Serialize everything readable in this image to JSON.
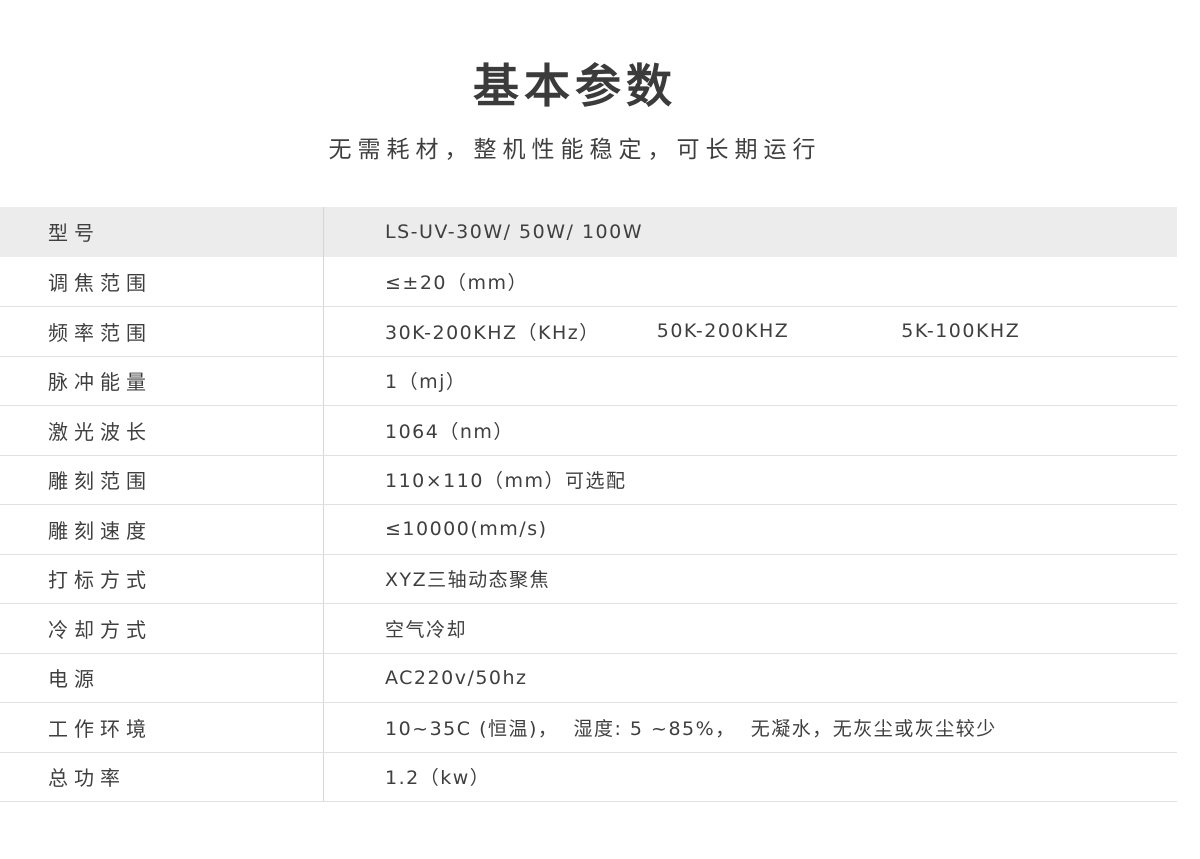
{
  "header": {
    "title": "基本参数",
    "subtitle": "无需耗材，整机性能稳定，可长期运行"
  },
  "table": {
    "rows": [
      {
        "label": "型号",
        "values": [
          "LS-UV-30W/ 50W/ 100W"
        ],
        "highlight": true
      },
      {
        "label": "调焦范围",
        "values": [
          "≤±20（mm）"
        ],
        "highlight": false
      },
      {
        "label": "频率范围",
        "values": [
          "30K-200KHZ（KHz）",
          "50K-200KHZ",
          "5K-100KHZ"
        ],
        "highlight": false
      },
      {
        "label": "脉冲能量",
        "values": [
          "1（mj）"
        ],
        "highlight": false
      },
      {
        "label": "激光波长",
        "values": [
          "1064（nm）"
        ],
        "highlight": false
      },
      {
        "label": "雕刻范围",
        "values": [
          "110×110（mm）可选配"
        ],
        "highlight": false
      },
      {
        "label": "雕刻速度",
        "values": [
          "≤10000(mm/s)"
        ],
        "highlight": false
      },
      {
        "label": "打标方式",
        "values": [
          "XYZ三轴动态聚焦"
        ],
        "highlight": false
      },
      {
        "label": "冷却方式",
        "values": [
          "空气冷却"
        ],
        "highlight": false
      },
      {
        "label": "电源",
        "values": [
          "AC220v/50hz"
        ],
        "highlight": false
      },
      {
        "label": "工作环境",
        "values": [
          "10~35C (恒温)，  湿度: 5 ~85%，  无凝水，无灰尘或灰尘较少"
        ],
        "highlight": false
      },
      {
        "label": "总功率",
        "values": [
          "1.2（kw）"
        ],
        "highlight": false
      }
    ]
  },
  "colors": {
    "text": "#3f3f3f",
    "title": "#3b3b3b",
    "highlight_row_bg": "#ececec",
    "row_border": "#e1e1e1",
    "column_divider": "#d6d6d6"
  }
}
